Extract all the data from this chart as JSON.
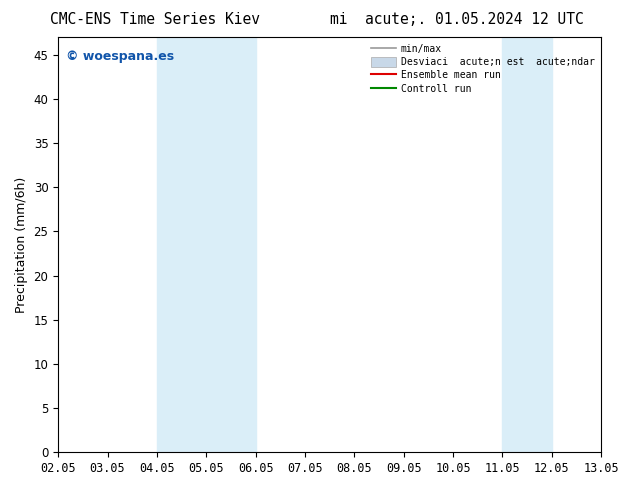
{
  "title": "CMC-ENS Time Series Kiev        mi  acute;. 01.05.2024 12 UTC",
  "ylabel": "Precipitation (mm/6h)",
  "watermark": "© woespana.es",
  "xlim": [
    0,
    11
  ],
  "ylim": [
    0,
    47
  ],
  "yticks": [
    0,
    5,
    10,
    15,
    20,
    25,
    30,
    35,
    40,
    45
  ],
  "xtick_labels": [
    "02.05",
    "03.05",
    "04.05",
    "05.05",
    "06.05",
    "07.05",
    "08.05",
    "09.05",
    "10.05",
    "11.05",
    "12.05",
    "13.05"
  ],
  "shaded_bands": [
    {
      "x_start": 2,
      "x_end": 4,
      "color": "#daeef8"
    },
    {
      "x_start": 9,
      "x_end": 10,
      "color": "#daeef8"
    }
  ],
  "bg_color": "#ffffff",
  "watermark_color": "#1155aa",
  "title_fontsize": 10.5,
  "label_fontsize": 9,
  "tick_fontsize": 8.5,
  "legend_label1": "min/max",
  "legend_label2": "Desviaci  acute;n est  acute;ndar",
  "legend_label3": "Ensemble mean run",
  "legend_label4": "Controll run",
  "legend_color1": "#999999",
  "legend_color2": "#c8d8e8",
  "legend_color3": "#dd0000",
  "legend_color4": "#008800"
}
